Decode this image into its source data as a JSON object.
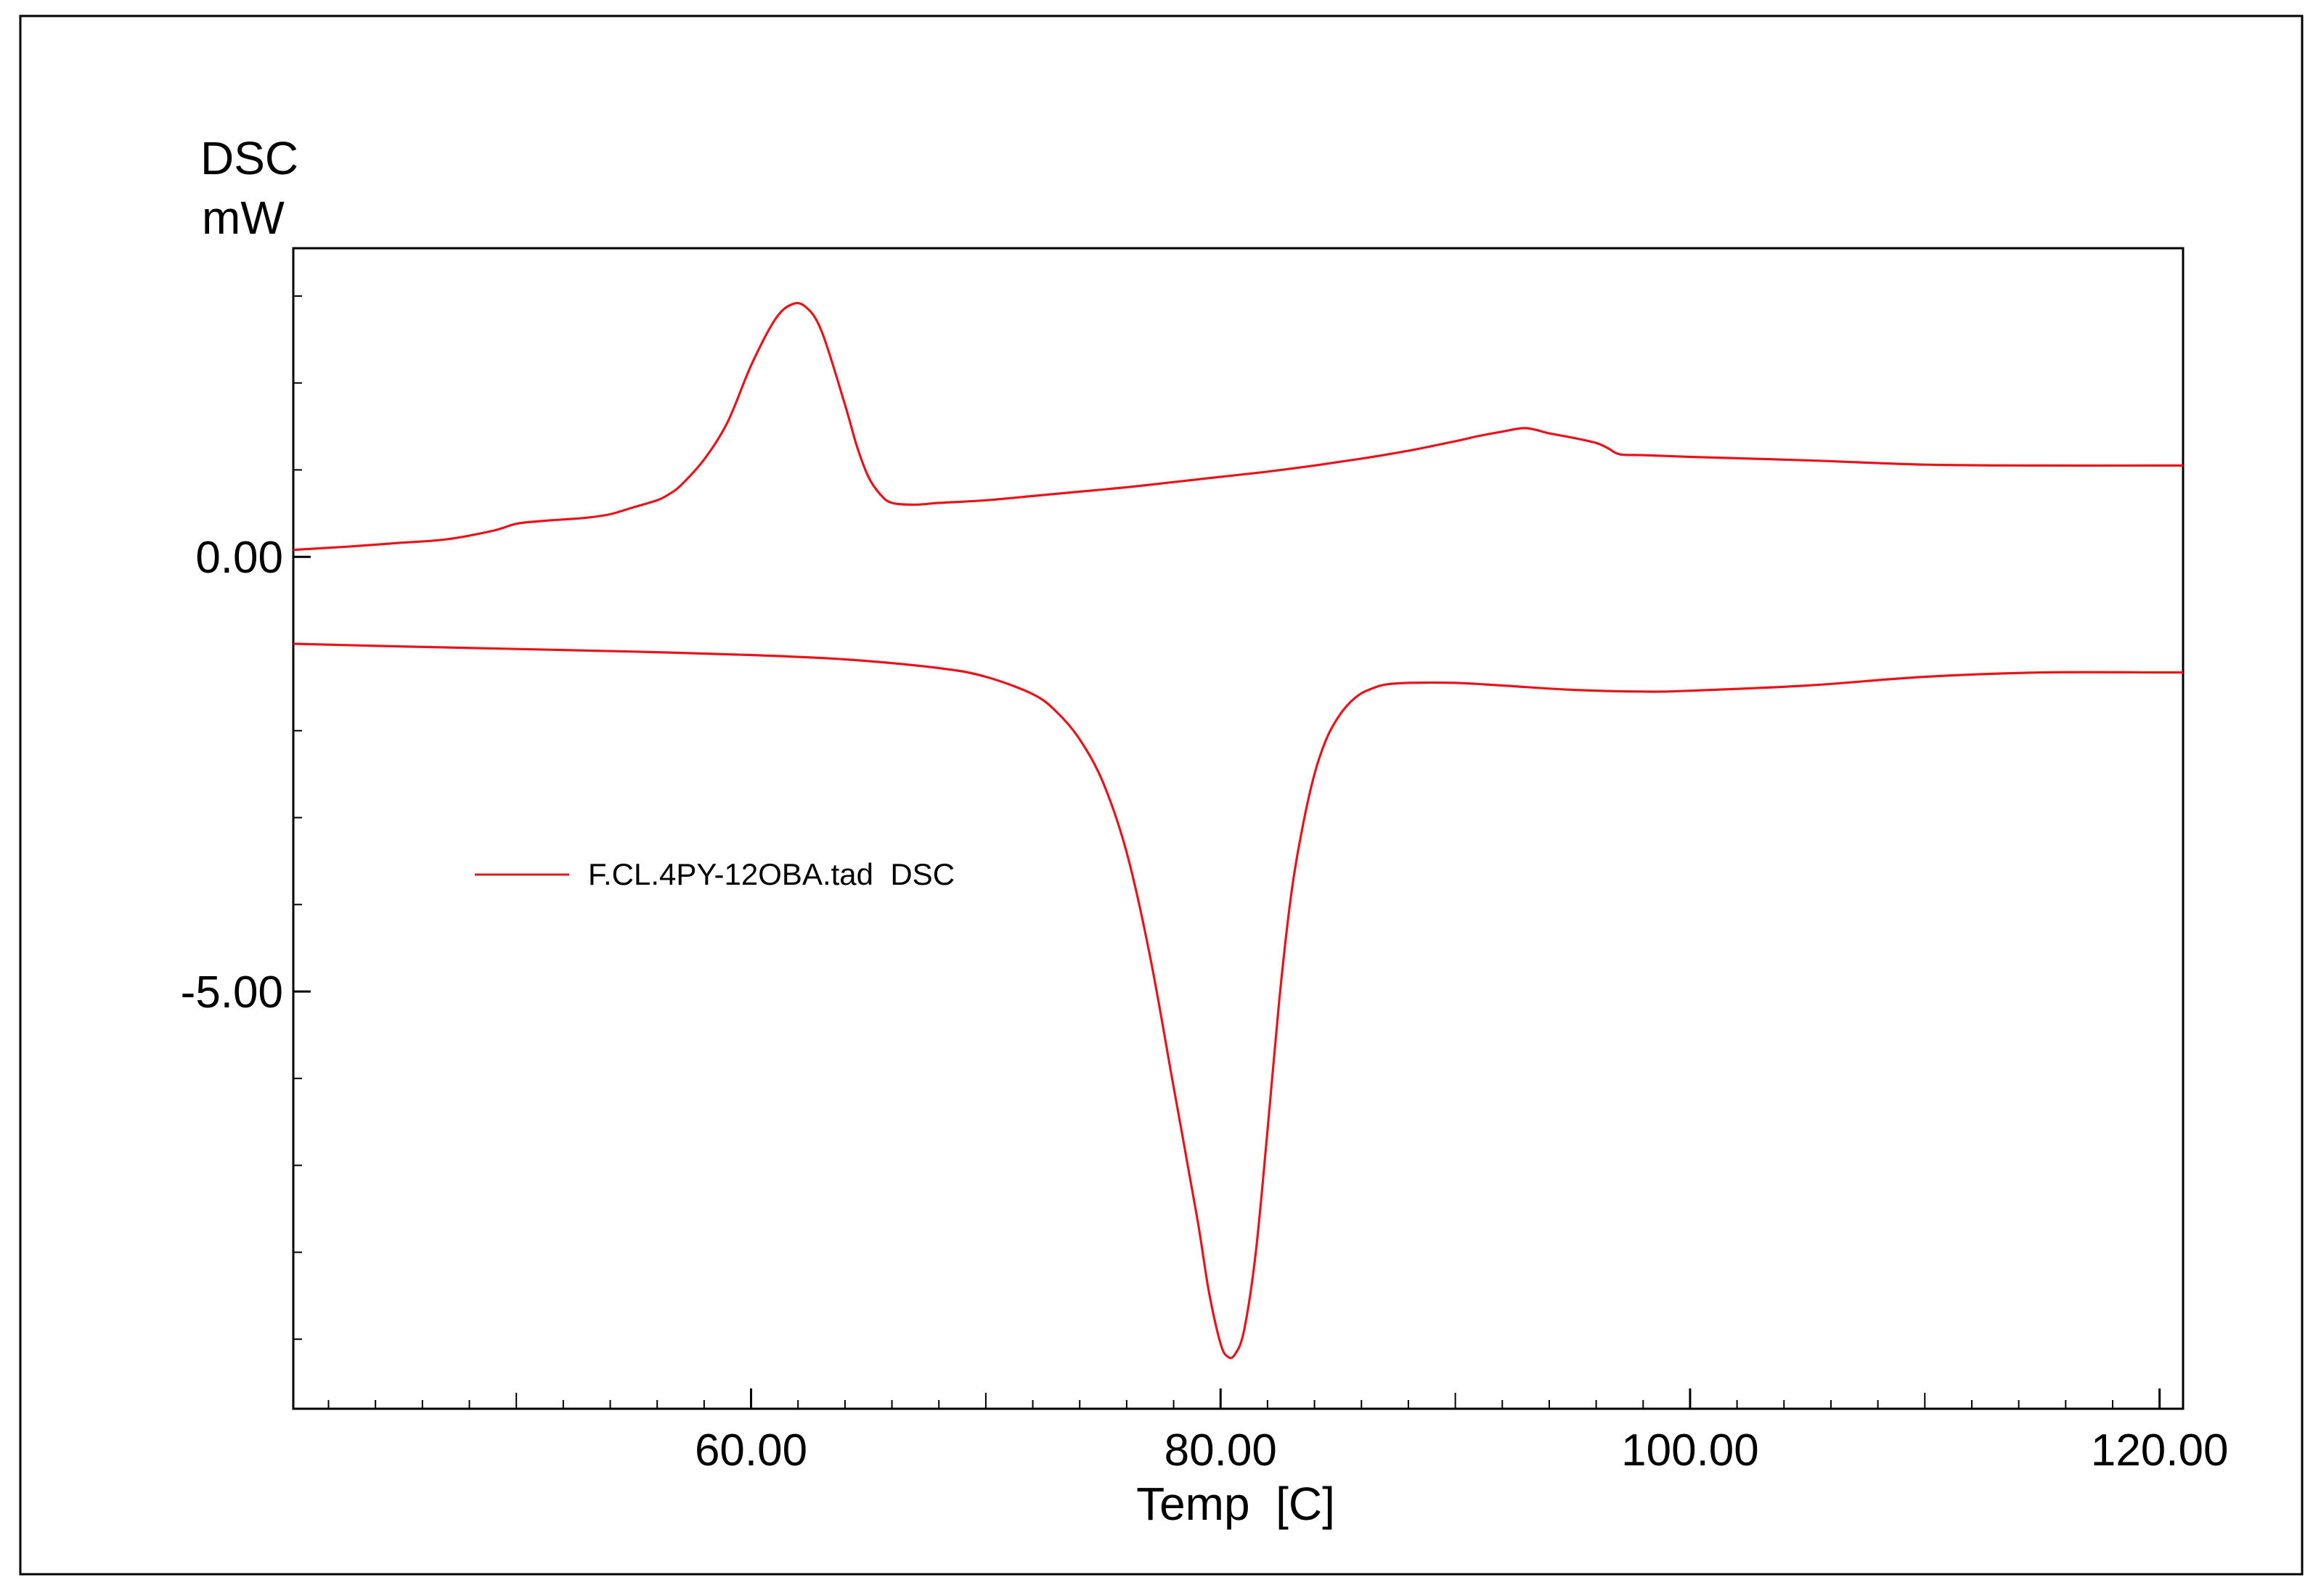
{
  "chart_data": {
    "type": "line",
    "ylabel_top": "DSC",
    "ylabel_unit": "mW",
    "xlabel": "Temp  [C]",
    "xlim": [
      40.5,
      121
    ],
    "ylim": [
      -9.8,
      3.55
    ],
    "x_ticks": [
      60,
      80,
      100,
      120
    ],
    "x_tick_labels": [
      "60.00",
      "80.00",
      "100.00",
      "120.00"
    ],
    "y_ticks": [
      0,
      -5
    ],
    "y_tick_labels": [
      "0.00",
      "-5.00"
    ],
    "line_color": "#e8141c",
    "legend": {
      "label": "F.CL.4PY-12OBA.tad  DSC",
      "placement": "middle-left"
    },
    "series": [
      {
        "segment": "heating",
        "x": [
          40.5,
          43,
          45,
          47,
          49,
          50,
          51,
          52,
          53,
          54,
          55,
          56,
          56.5,
          57,
          58,
          59,
          60,
          61,
          61.7,
          62.3,
          63,
          64,
          64.5,
          65,
          65.5,
          66,
          67,
          68,
          70,
          72,
          74,
          76,
          78,
          80,
          82,
          84,
          86,
          88,
          90,
          91,
          92,
          93,
          94,
          95,
          96,
          96.5,
          97,
          98,
          100,
          105,
          110,
          115,
          120,
          121
        ],
        "y": [
          0.08,
          0.12,
          0.16,
          0.2,
          0.3,
          0.38,
          0.41,
          0.43,
          0.45,
          0.49,
          0.57,
          0.65,
          0.72,
          0.82,
          1.12,
          1.55,
          2.2,
          2.72,
          2.9,
          2.88,
          2.6,
          1.75,
          1.28,
          0.92,
          0.72,
          0.62,
          0.6,
          0.62,
          0.65,
          0.7,
          0.75,
          0.8,
          0.86,
          0.92,
          0.98,
          1.05,
          1.13,
          1.22,
          1.33,
          1.39,
          1.44,
          1.48,
          1.42,
          1.37,
          1.31,
          1.25,
          1.18,
          1.17,
          1.15,
          1.11,
          1.06,
          1.05,
          1.05,
          1.05
        ]
      },
      {
        "segment": "cooling",
        "x": [
          40.5,
          45,
          50,
          55,
          60,
          64,
          68,
          70,
          72,
          73,
          74,
          75,
          76,
          77,
          78,
          79,
          79.5,
          80,
          80.3,
          80.6,
          81,
          81.5,
          82,
          82.5,
          83,
          83.5,
          84,
          84.5,
          85,
          85.5,
          86,
          86.5,
          87,
          88,
          90,
          92,
          95,
          98,
          100,
          105,
          110,
          115,
          120,
          121
        ],
        "y": [
          -1.0,
          -1.03,
          -1.06,
          -1.09,
          -1.13,
          -1.18,
          -1.28,
          -1.38,
          -1.58,
          -1.78,
          -2.1,
          -2.6,
          -3.4,
          -4.6,
          -6.1,
          -7.6,
          -8.45,
          -9.05,
          -9.2,
          -9.18,
          -8.9,
          -8.0,
          -6.6,
          -5.1,
          -3.9,
          -3.1,
          -2.5,
          -2.1,
          -1.85,
          -1.68,
          -1.57,
          -1.51,
          -1.47,
          -1.45,
          -1.45,
          -1.48,
          -1.53,
          -1.55,
          -1.54,
          -1.48,
          -1.38,
          -1.33,
          -1.33,
          -1.33
        ]
      }
    ]
  }
}
